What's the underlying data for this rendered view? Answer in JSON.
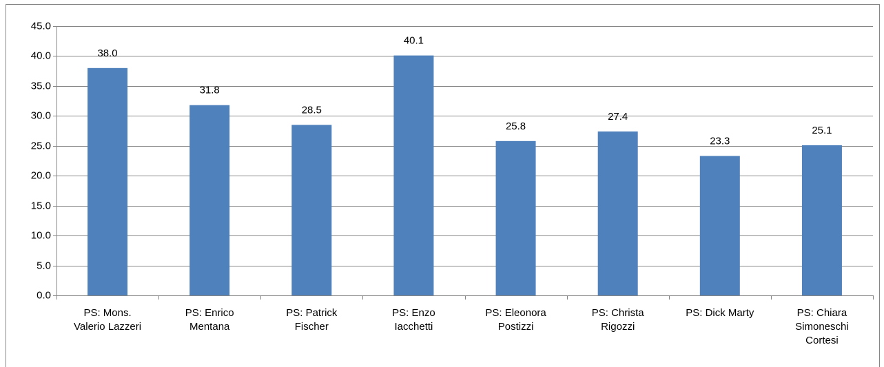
{
  "chart_data": {
    "type": "bar",
    "categories": [
      "PS: Mons. Valerio Lazzeri",
      "PS: Enrico Mentana",
      "PS: Patrick Fischer",
      "PS: Enzo Iacchetti",
      "PS: Eleonora Postizzi",
      "PS: Christa Rigozzi",
      "PS: Dick Marty",
      "PS: Chiara Simoneschi Cortesi"
    ],
    "values": [
      38.0,
      31.8,
      28.5,
      40.1,
      25.8,
      27.4,
      23.3,
      25.1
    ],
    "value_labels": [
      "38.0",
      "31.8",
      "28.5",
      "40.1",
      "25.8",
      "27.4",
      "23.3",
      "25.1"
    ],
    "color": "#4f81bd",
    "ylim": [
      0,
      45
    ],
    "yticks": [
      {
        "value": 0,
        "label": "0.0"
      },
      {
        "value": 5,
        "label": "5.0"
      },
      {
        "value": 10,
        "label": "10.0"
      },
      {
        "value": 15,
        "label": "15.0"
      },
      {
        "value": 20,
        "label": "20.0"
      },
      {
        "value": 25,
        "label": "25.0"
      },
      {
        "value": 30,
        "label": "30.0"
      },
      {
        "value": 35,
        "label": "35.0"
      },
      {
        "value": 40,
        "label": "40.0"
      },
      {
        "value": 45,
        "label": "45.0"
      }
    ],
    "grid": true
  }
}
